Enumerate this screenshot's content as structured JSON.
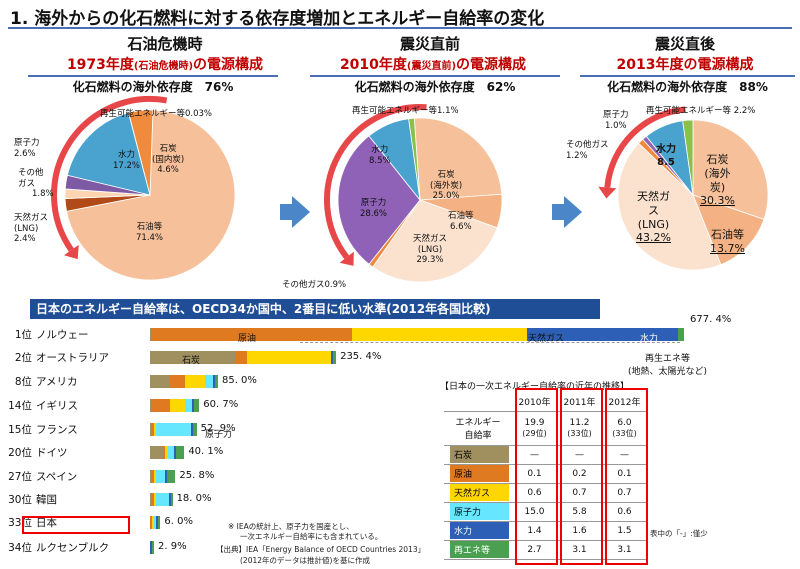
{
  "page": {
    "title": "1. 海外からの化石燃料に対する依存度増加とエネルギー自給率の変化"
  },
  "pies": [
    {
      "header": "石油危機時",
      "year_line": "1973年度",
      "year_sub": "(石油危機時)",
      "year_tail": "の電源構成",
      "dependency": "化石燃料の海外依存度　76%"
    },
    {
      "header": "震災直前",
      "year_line": "2010年度",
      "year_sub": "(震災直前)",
      "year_tail": "の電源構成",
      "dependency": "化石燃料の海外依存度　62%"
    },
    {
      "header": "震災直後",
      "year_line": "2013年度の電源構成",
      "year_sub": "",
      "year_tail": "",
      "dependency": "化石燃料の海外依存度　88%"
    }
  ],
  "pie_labels": {
    "p1": {
      "renew": "再生可能エネルギー等0.03%",
      "nuclear": "原子力",
      "nuclear_v": "2.6%",
      "other": "その他",
      "other2": "ガス",
      "other_v": "1.8%",
      "hydro": "水力",
      "hydro_v": "17.2%",
      "coal": "石炭",
      "coal2": "(国内炭)",
      "coal_v": "4.6%",
      "lng": "天然ガス",
      "lng2": "(LNG)",
      "lng_v": "2.4%",
      "oil": "石油等",
      "oil_v": "71.4%"
    },
    "p2": {
      "renew": "再生可能エネルギー等1.1%",
      "hydro": "水力",
      "hydro_v": "8.5%",
      "coal": "石炭",
      "coal2": "(海外炭)",
      "coal_v": "25.0%",
      "nuclear": "原子力",
      "nuclear_v": "28.6%",
      "oil": "石油等",
      "oil_v": "6.6%",
      "lng": "天然ガス",
      "lng2": "(LNG)",
      "lng_v": "29.3%",
      "other": "その他ガス0.9%"
    },
    "p3": {
      "nuclear": "原子力",
      "nuclear_v": "1.0%",
      "renew": "再生可能エネルギー等 2.2%",
      "other": "その他ガス",
      "other_v": "1.2%",
      "hydro": "水力",
      "hydro_v": "8.5",
      "coal": "石炭",
      "coal2": "(海外",
      "coal3": "炭)",
      "coal_v": "30.3%",
      "lng": "天然ガ",
      "lng2": "ス",
      "lng3": "(LNG)",
      "lng_v": "43.2%",
      "oil": "石油等",
      "oil_v": "13.7%"
    }
  },
  "chart_data": [
    {
      "type": "pie",
      "title": "1973年度(石油危機時)の電源構成",
      "slices": [
        {
          "name": "石油等",
          "value": 71.4,
          "color": "#f6c19a"
        },
        {
          "name": "天然ガス(LNG)",
          "value": 2.4,
          "color": "#b04a16"
        },
        {
          "name": "その他ガス",
          "value": 1.8,
          "color": "#ffd4b0"
        },
        {
          "name": "原子力",
          "value": 2.6,
          "color": "#7e5aa4"
        },
        {
          "name": "水力",
          "value": 17.2,
          "color": "#4aa3cf"
        },
        {
          "name": "再生可能エネルギー等",
          "value": 0.03,
          "color": "#8cc04b"
        },
        {
          "name": "石炭(国内炭)",
          "value": 4.6,
          "color": "#f08a3c"
        }
      ]
    },
    {
      "type": "pie",
      "title": "2010年度(震災直前)の電源構成",
      "slices": [
        {
          "name": "石炭(海外炭)",
          "value": 25.0,
          "color": "#f6c19a"
        },
        {
          "name": "石油等",
          "value": 6.6,
          "color": "#f4b183"
        },
        {
          "name": "天然ガス(LNG)",
          "value": 29.3,
          "color": "#fbe2cf"
        },
        {
          "name": "その他ガス",
          "value": 0.9,
          "color": "#f08a3c"
        },
        {
          "name": "原子力",
          "value": 28.6,
          "color": "#8f62b8"
        },
        {
          "name": "水力",
          "value": 8.5,
          "color": "#4aa3cf"
        },
        {
          "name": "再生可能エネルギー等",
          "value": 1.1,
          "color": "#8cc04b"
        }
      ]
    },
    {
      "type": "pie",
      "title": "2013年度の電源構成",
      "slices": [
        {
          "name": "石炭(海外炭)",
          "value": 30.3,
          "color": "#f6c19a"
        },
        {
          "name": "石油等",
          "value": 13.7,
          "color": "#f4b183"
        },
        {
          "name": "天然ガス(LNG)",
          "value": 43.2,
          "color": "#fbe2cf"
        },
        {
          "name": "その他ガス",
          "value": 1.2,
          "color": "#f08a3c"
        },
        {
          "name": "原子力",
          "value": 1.0,
          "color": "#8f62b8"
        },
        {
          "name": "水力",
          "value": 8.5,
          "color": "#4aa3cf"
        },
        {
          "name": "再生可能エネルギー等",
          "value": 2.2,
          "color": "#8cc04b"
        }
      ]
    },
    {
      "type": "bar",
      "title": "日本のエネルギー自給率は、OECD34か国中、2番目に低い水準(2012年各国比較)",
      "orientation": "horizontal",
      "unit": "%",
      "segment_colors": {
        "石炭": "#a09060",
        "原油": "#e07a20",
        "天然ガス": "#ffd700",
        "原子力": "#66e6ff",
        "水力": "#2c5fb5",
        "再生エネ等": "#4aa050"
      },
      "rows": [
        {
          "rank": "1位",
          "country": "ノルウェー",
          "total": 677.4,
          "label": "677. 4%",
          "segments": [
            [
              "石炭",
              0.5
            ],
            [
              "原油",
              255.0
            ],
            [
              "天然ガス",
              222.0
            ],
            [
              "原子力",
              0
            ],
            [
              "水力",
              193.0
            ],
            [
              "再生エネ等",
              6.9
            ]
          ]
        },
        {
          "rank": "2位",
          "country": "オーストラリア",
          "total": 235.4,
          "label": "235. 4%",
          "segments": [
            [
              "石炭",
              108.0
            ],
            [
              "原油",
              16.0
            ],
            [
              "天然ガス",
              106.0
            ],
            [
              "原子力",
              0
            ],
            [
              "水力",
              1.0
            ],
            [
              "再生エネ等",
              4.4
            ]
          ]
        },
        {
          "rank": "8位",
          "country": "アメリカ",
          "total": 85.0,
          "label": "85. 0%",
          "segments": [
            [
              "石炭",
              25.0
            ],
            [
              "原油",
              20.0
            ],
            [
              "天然ガス",
              25.0
            ],
            [
              "原子力",
              10.0
            ],
            [
              "水力",
              1.0
            ],
            [
              "再生エネ等",
              4.0
            ]
          ]
        },
        {
          "rank": "14位",
          "country": "イギリス",
          "total": 60.7,
          "label": "60. 7%",
          "segments": [
            [
              "石炭",
              3.0
            ],
            [
              "原油",
              23.0
            ],
            [
              "天然ガス",
              19.0
            ],
            [
              "原子力",
              9.0
            ],
            [
              "水力",
              0.5
            ],
            [
              "再生エネ等",
              6.2
            ]
          ]
        },
        {
          "rank": "15位",
          "country": "フランス",
          "total": 52.9,
          "label": "52. 9%",
          "segments": [
            [
              "石炭",
              0.2
            ],
            [
              "原油",
              1.0
            ],
            [
              "天然ガス",
              0.5
            ],
            [
              "原子力",
              44.0
            ],
            [
              "水力",
              2.0
            ],
            [
              "再生エネ等",
              5.2
            ]
          ]
        },
        {
          "rank": "20位",
          "country": "ドイツ",
          "total": 40.1,
          "label": "40. 1%",
          "segments": [
            [
              "石炭",
              17.0
            ],
            [
              "原油",
              1.0
            ],
            [
              "天然ガス",
              3.0
            ],
            [
              "原子力",
              8.0
            ],
            [
              "水力",
              0.5
            ],
            [
              "再生エネ等",
              10.6
            ]
          ]
        },
        {
          "rank": "27位",
          "country": "スペイン",
          "total": 25.8,
          "label": "25. 8%",
          "segments": [
            [
              "石炭",
              2.0
            ],
            [
              "原油",
              0.3
            ],
            [
              "天然ガス",
              0.1
            ],
            [
              "原子力",
              12.0
            ],
            [
              "水力",
              1.2
            ],
            [
              "再生エネ等",
              10.2
            ]
          ]
        },
        {
          "rank": "30位",
          "country": "韓国",
          "total": 18.0,
          "label": "18. 0%",
          "segments": [
            [
              "石炭",
              0.5
            ],
            [
              "原油",
              0.5
            ],
            [
              "天然ガス",
              0.5
            ],
            [
              "原子力",
              16.0
            ],
            [
              "水力",
              0.2
            ],
            [
              "再生エネ等",
              0.3
            ]
          ]
        },
        {
          "rank": "33位",
          "country": "日本",
          "total": 6.0,
          "label": "6. 0%",
          "segments": [
            [
              "石炭",
              0
            ],
            [
              "原油",
              0.1
            ],
            [
              "天然ガス",
              0.7
            ],
            [
              "原子力",
              0.6
            ],
            [
              "水力",
              1.5
            ],
            [
              "再生エネ等",
              3.1
            ]
          ]
        },
        {
          "rank": "34位",
          "country": "ルクセンブルク",
          "total": 2.9,
          "label": "2. 9%",
          "segments": [
            [
              "石炭",
              0
            ],
            [
              "原油",
              0
            ],
            [
              "天然ガス",
              0
            ],
            [
              "原子力",
              0
            ],
            [
              "水力",
              0.8
            ],
            [
              "再生エネ等",
              2.1
            ]
          ]
        }
      ]
    },
    {
      "type": "table",
      "title": "【日本の一次エネルギー自給率の近年の推移】",
      "columns": [
        "",
        "2010年",
        "2011年",
        "2012年"
      ],
      "rows": [
        {
          "name": "エネルギー自給率",
          "values": [
            "19.9",
            "11.2",
            "6.0"
          ],
          "sub": [
            "(29位)",
            "(33位)",
            "(33位)"
          ]
        },
        {
          "name": "石炭",
          "values": [
            "—",
            "—",
            "—"
          ],
          "color": "#a09060"
        },
        {
          "name": "原油",
          "values": [
            "0.1",
            "0.2",
            "0.1"
          ],
          "color": "#e07a20"
        },
        {
          "name": "天然ガス",
          "values": [
            "0.6",
            "0.7",
            "0.7"
          ],
          "color": "#ffd700"
        },
        {
          "name": "原子力",
          "values": [
            "15.0",
            "5.8",
            "0.6"
          ],
          "color": "#66e6ff"
        },
        {
          "name": "水力",
          "values": [
            "1.4",
            "1.6",
            "1.5"
          ],
          "color": "#2c5fb5"
        },
        {
          "name": "再エネ等",
          "values": [
            "2.7",
            "3.1",
            "3.1"
          ],
          "color": "#4aa050"
        }
      ]
    }
  ],
  "bar_labels": {
    "norway_oil": "原油",
    "norway_gas": "天然ガス",
    "norway_hydro": "水力",
    "aus_coal": "石炭",
    "fr_nuclear": "原子力",
    "renew_note1": "再生エネ等",
    "renew_note2": "(地熱、太陽光など)"
  },
  "notes": {
    "n1": "※ IEAの統計上、原子力を国産とし、",
    "n2": "一次エネルギー自給率にも含まれている。",
    "n3": "【出典】IEA「Energy Balance of OECD Countries 2013」",
    "n4": "(2012年のデータは推計値)を基に作成",
    "table_note": "表中の「-」:僅少"
  },
  "table_row_label": {
    "self_1": "エネルギー",
    "self_2": "自給率"
  }
}
